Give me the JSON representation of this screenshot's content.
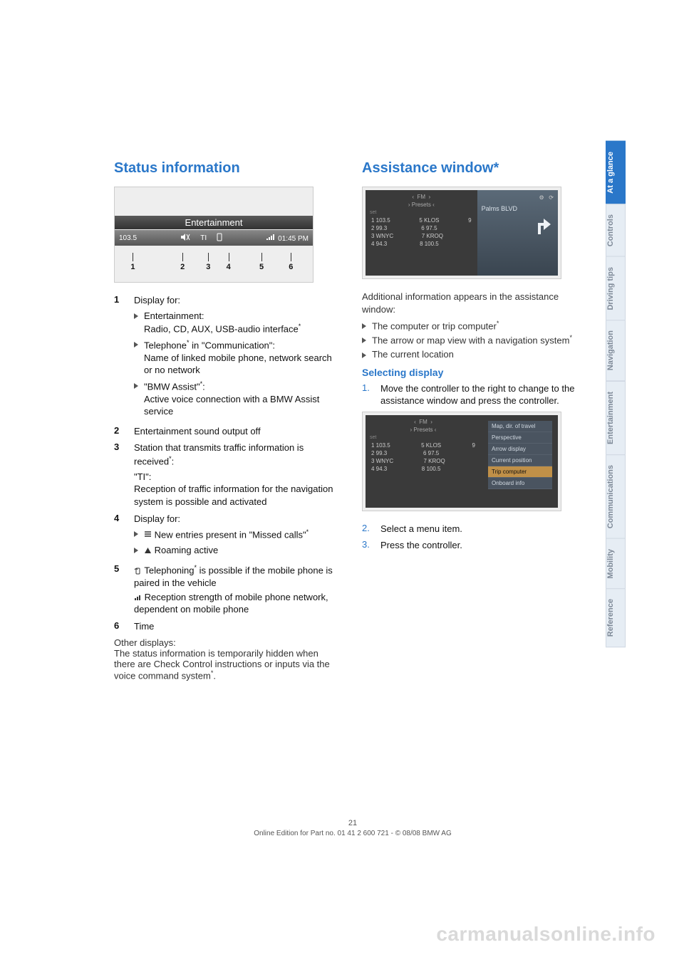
{
  "tabs": [
    {
      "label": "At a glance",
      "active": true
    },
    {
      "label": "Controls",
      "active": false
    },
    {
      "label": "Driving tips",
      "active": false
    },
    {
      "label": "Navigation",
      "active": false
    },
    {
      "label": "Entertainment",
      "active": false
    },
    {
      "label": "Communications",
      "active": false
    },
    {
      "label": "Mobility",
      "active": false
    },
    {
      "label": "Reference",
      "active": false
    }
  ],
  "left": {
    "heading": "Status information",
    "fig_status": {
      "ent_title": "Entertainment",
      "freq": "103.5",
      "ti": "TI",
      "time": "01:45 PM",
      "markers": [
        "1",
        "2",
        "3",
        "4",
        "5",
        "6"
      ],
      "marker_pos_pct": [
        6,
        33,
        47,
        58,
        76,
        92
      ]
    },
    "items": {
      "i1": {
        "num": "1",
        "label": "Display for:",
        "subs": [
          {
            "title": "Entertainment:",
            "body": "Radio, CD, AUX, USB-audio interface",
            "ast": true
          },
          {
            "title": "Telephone",
            "titleast": true,
            "title2": " in \"Communication\":",
            "body": "Name of linked mobile phone, network search or no network"
          },
          {
            "title": "\"BMW Assist\"",
            "titleast": true,
            "title2": ":",
            "body": "Active voice connection with a BMW Assist service"
          }
        ]
      },
      "i2": {
        "num": "2",
        "label": "Entertainment sound output off"
      },
      "i3": {
        "num": "3",
        "label": "Station that transmits traffic information is received",
        "ast": true,
        "extra_title": "\"TI\":",
        "extra_body": "Reception of traffic information for the navigation system is possible and activated"
      },
      "i4": {
        "num": "4",
        "label": "Display for:",
        "subs": [
          {
            "glyph": "list",
            "body": "New entries present in \"Missed calls\"",
            "ast": true
          },
          {
            "glyph": "roam",
            "body": "Roaming active"
          }
        ]
      },
      "i5": {
        "num": "5",
        "pre_glyph": "tel",
        "label": "Telephoning",
        "ast": true,
        "label2": " is possible if the mobile phone is paired in the vehicle",
        "extra_glyph": "bars",
        "extra_body": "Reception strength of mobile phone network, dependent on mobile phone"
      },
      "i6": {
        "num": "6",
        "label": "Time"
      }
    },
    "other_title": "Other displays:",
    "other_body": "The status information is temporarily hidden when there are Check Control instructions or inputs via the voice command system",
    "other_ast": true
  },
  "right": {
    "heading": "Assistance window*",
    "fig_asst": {
      "hdr1": "FM",
      "hdr2": "› Presets ‹",
      "palms": "Palms BLVD",
      "rows": [
        [
          "1 103.5",
          "5 KLOS",
          "9"
        ],
        [
          "2 99.3",
          "6 97.5",
          ""
        ],
        [
          "3 WNYC",
          "7 KROQ",
          ""
        ],
        [
          "4 94.3",
          "8 100.5",
          ""
        ]
      ]
    },
    "intro": "Additional information appears in the assistance window:",
    "bullets": [
      {
        "body": "The computer or trip computer",
        "ast": true
      },
      {
        "body": "The arrow or map view with a navigation system",
        "ast": true
      },
      {
        "body": "The current location"
      }
    ],
    "sel_heading": "Selecting display",
    "steps1": [
      {
        "n": "1.",
        "body": "Move the controller to the right to change to the assistance window and press the controller."
      }
    ],
    "fig_asst2": {
      "menu": [
        {
          "label": "Map, dir. of travel",
          "sel": false
        },
        {
          "label": "Perspective",
          "sel": false
        },
        {
          "label": "Arrow display",
          "sel": false
        },
        {
          "label": "Current position",
          "sel": false
        },
        {
          "label": "Trip computer",
          "sel": true
        },
        {
          "label": "Onboard info",
          "sel": false
        }
      ],
      "rows": [
        [
          "1 103.5",
          "5 KLOS",
          "9"
        ],
        [
          "2 99.3",
          "6 97.5",
          ""
        ],
        [
          "3 WNYC",
          "7 KROQ",
          ""
        ],
        [
          "4 94.3",
          "8 100.5",
          ""
        ]
      ],
      "hdr1": "FM",
      "hdr2": "› Presets ‹"
    },
    "steps2": [
      {
        "n": "2.",
        "body": "Select a menu item."
      },
      {
        "n": "3.",
        "body": "Press the controller."
      }
    ]
  },
  "footer": {
    "page": "21",
    "line": "Online Edition for Part no. 01 41 2 600 721 - © 08/08 BMW AG"
  },
  "watermark": "carmanualsonline.info",
  "colors": {
    "accent": "#2a77c9",
    "tab_inactive_bg": "#e6edf4",
    "tab_inactive_fg": "#7f8a98"
  }
}
